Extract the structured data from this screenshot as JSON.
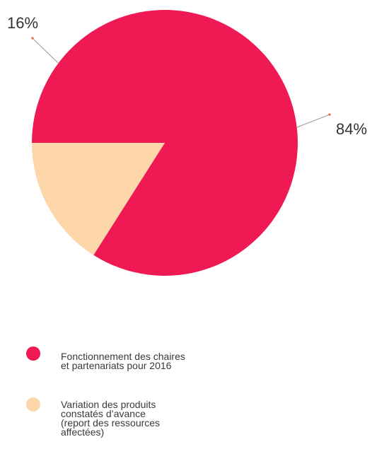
{
  "chart_data": {
    "type": "pie",
    "title": "",
    "slices": [
      {
        "label_lines": [
          "Fonctionnement des chaires",
          "et partenariats pour 2016"
        ],
        "value": 84,
        "value_label": "84%",
        "color": "#ef1a53"
      },
      {
        "label_lines": [
          "Variation des produits",
          "constatés d’avance",
          "(report des ressources",
          "affectées)"
        ],
        "value": 16,
        "value_label": "16%",
        "color": "#fdd6aa"
      }
    ],
    "leader_line_color": "#9a9a9a",
    "leader_dot_color": "#e8663a",
    "legend_position": "bottom-left"
  }
}
